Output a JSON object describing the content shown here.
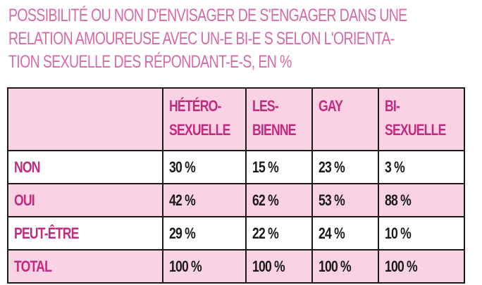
{
  "chart_data": {
    "type": "table",
    "title_lines": [
      "POSSIBILITÉ OU NON D'ENVISAGER DE S'ENGAGER DANS UNE",
      "RELATION AMOUREUSE AVEC UN-E BI-E S SELON L'ORIENTA-",
      "TION SEXUELLE DES RÉPONDANT-E-S, EN %"
    ],
    "columns": [
      {
        "line1": "HÉTÉRO-",
        "line2": "SEXUELLE"
      },
      {
        "line1": "LES-",
        "line2": "BIENNE"
      },
      {
        "line1": "GAY",
        "line2": ""
      },
      {
        "line1": "BI-",
        "line2": "SEXUELLE"
      }
    ],
    "rows": [
      {
        "label": "NON",
        "cells": [
          "30 %",
          "15 %",
          "23 %",
          "3 %"
        ]
      },
      {
        "label": "OUI",
        "cells": [
          "42 %",
          "62 %",
          "53 %",
          "88 %"
        ]
      },
      {
        "label": "PEUT-ÊTRE",
        "cells": [
          "29 %",
          "22 %",
          "24 %",
          "10 %"
        ]
      },
      {
        "label": "TOTAL",
        "cells": [
          "100 %",
          "100 %",
          "100 %",
          "100 %"
        ]
      }
    ],
    "colors": {
      "title": "#d66aa6",
      "label": "#c02b80",
      "fill": "#f9d3e4",
      "border": "#1a1a1a"
    }
  }
}
